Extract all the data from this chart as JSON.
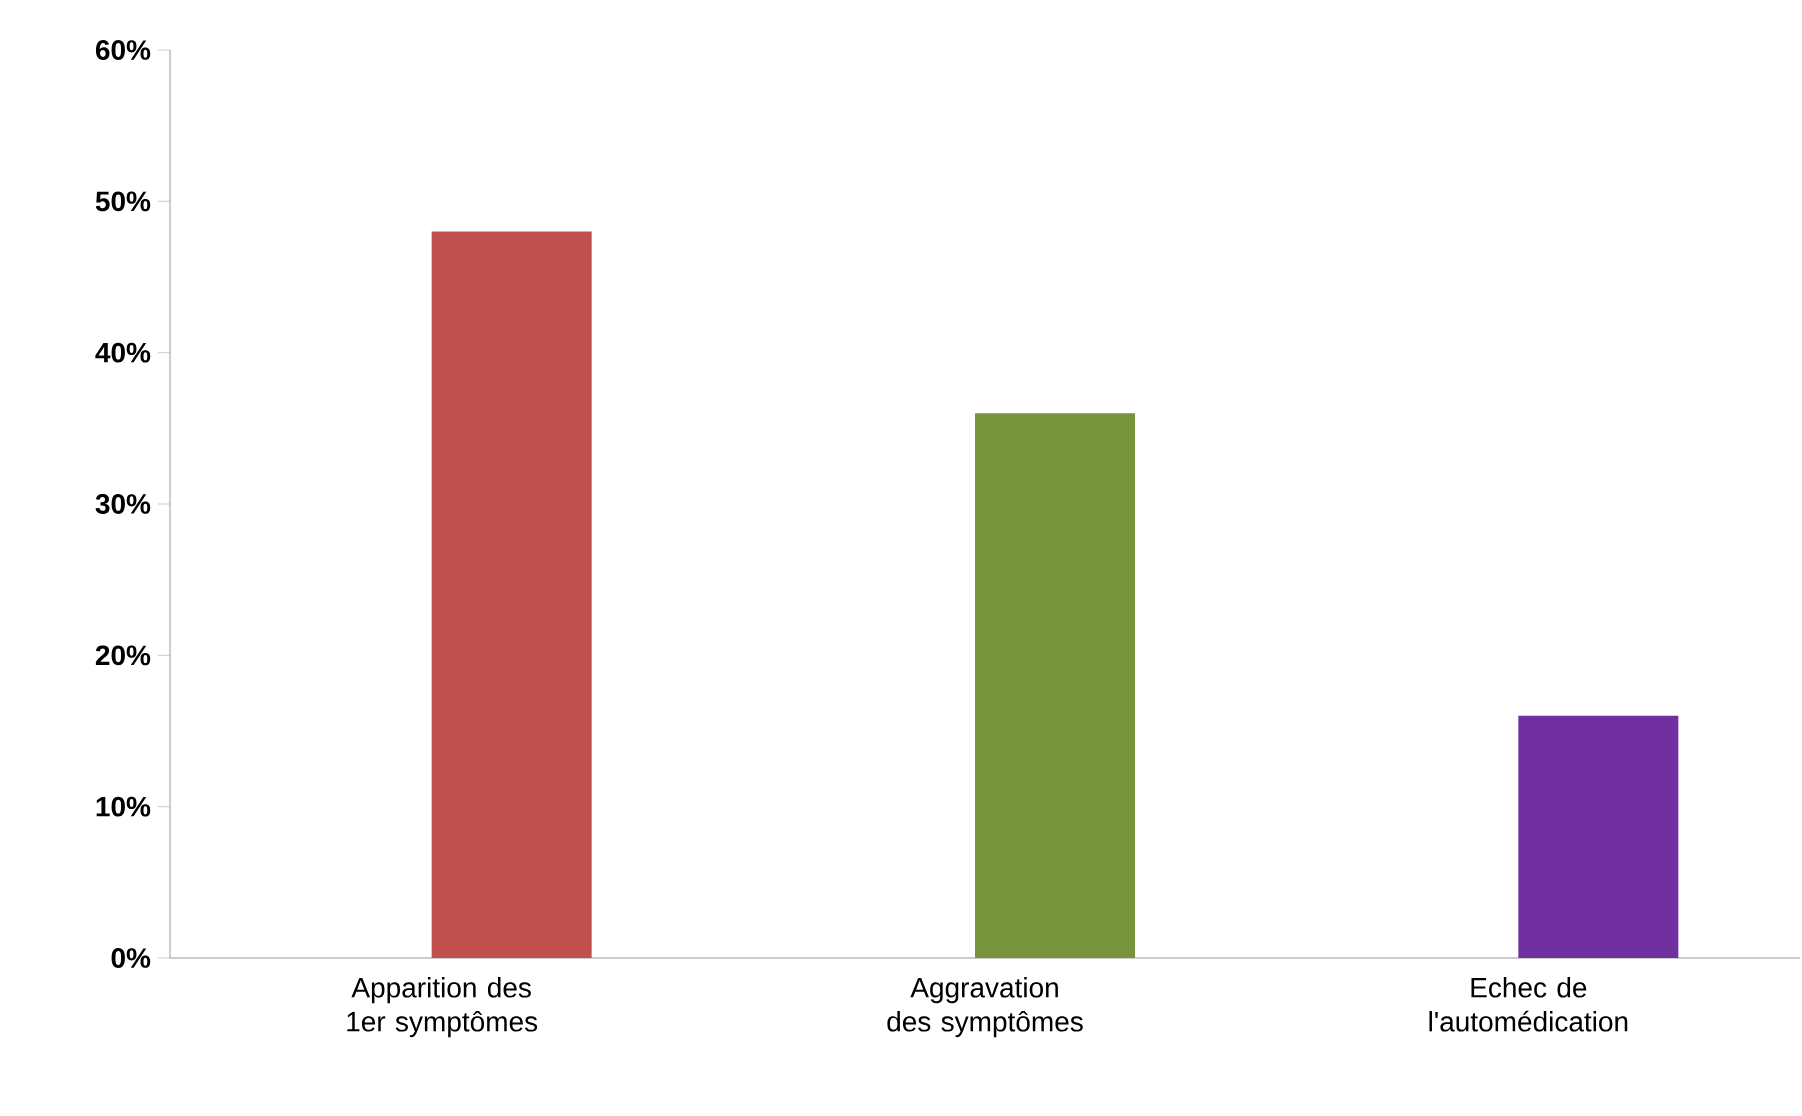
{
  "chart_data": {
    "type": "bar",
    "categories": [
      "Apparition des 1er symptômes",
      "Aggravation des symptômes",
      "Echec de l'automédication"
    ],
    "values": [
      48,
      36,
      16
    ],
    "colors": [
      "#c0504d",
      "#77933c",
      "#7030a0"
    ],
    "yticks": [
      {
        "value": 0,
        "label": "0%"
      },
      {
        "value": 10,
        "label": "10%"
      },
      {
        "value": 20,
        "label": "20%"
      },
      {
        "value": 30,
        "label": "30%"
      },
      {
        "value": 40,
        "label": "40%"
      },
      {
        "value": 50,
        "label": "50%"
      },
      {
        "value": 60,
        "label": "60%"
      }
    ],
    "ylim": [
      0,
      60
    ]
  }
}
